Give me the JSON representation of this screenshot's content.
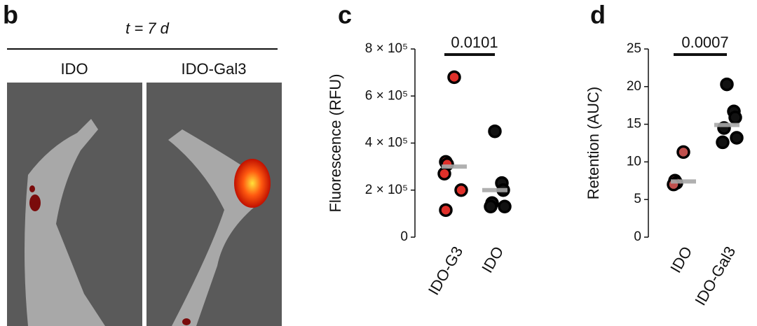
{
  "panel_b": {
    "letter": "b",
    "title": "t = 7 d",
    "columns": [
      "IDO",
      "IDO-Gal3"
    ]
  },
  "chart_data": [
    {
      "type": "strip",
      "panel_label": "c",
      "ylabel": "Fluorescence (RFU)",
      "categories": [
        "IDO-G3",
        "IDO"
      ],
      "colors": [
        "#e0302a",
        "#111111"
      ],
      "points": [
        [
          680000,
          320000,
          310000,
          270000,
          200000,
          115000
        ],
        [
          450000,
          230000,
          200000,
          145000,
          130000,
          130000
        ]
      ],
      "center_values": [
        300000,
        200000
      ],
      "annotation": "0.0101",
      "ylim": [
        0,
        800000
      ],
      "yticks": [
        0,
        {
          "value": 200000,
          "label": "2 × 10⁵"
        },
        {
          "value": 400000,
          "label": "4 × 10⁵"
        },
        {
          "value": 600000,
          "label": "6 × 10⁵"
        },
        {
          "value": 800000,
          "label": "8 × 10⁵"
        }
      ]
    },
    {
      "type": "strip",
      "panel_label": "d",
      "ylabel": "Retention (AUC)",
      "categories": [
        "IDO",
        "IDO-Gal3"
      ],
      "colors": [
        "#c0504d",
        "#111111"
      ],
      "points": [
        [
          11.3,
          7.5,
          7.2,
          7.0
        ],
        [
          20.3,
          16.7,
          15.9,
          14.5,
          13.2,
          12.6
        ]
      ],
      "center_values": [
        7.4,
        14.9
      ],
      "annotation": "0.0007",
      "ylim": [
        0,
        25
      ],
      "yticks": [
        0,
        5,
        10,
        15,
        20,
        25
      ]
    }
  ]
}
